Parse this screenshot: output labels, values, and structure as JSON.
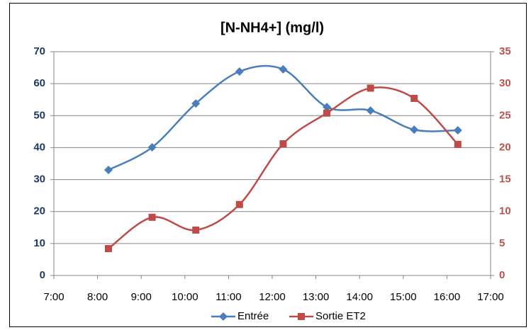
{
  "chart_data": {
    "type": "line",
    "title": "[N-NH4+] (mg/l)",
    "x": [
      8.25,
      9.25,
      10.25,
      11.25,
      12.25,
      13.25,
      14.25,
      15.25,
      16.25
    ],
    "xlim": [
      7,
      17
    ],
    "xticks": [
      {
        "value": 7,
        "label": "7:00"
      },
      {
        "value": 8,
        "label": "8:00"
      },
      {
        "value": 9,
        "label": "9:00"
      },
      {
        "value": 10,
        "label": "10:00"
      },
      {
        "value": 11,
        "label": "11:00"
      },
      {
        "value": 12,
        "label": "12:00"
      },
      {
        "value": 13,
        "label": "13:00"
      },
      {
        "value": 14,
        "label": "14:00"
      },
      {
        "value": 15,
        "label": "15:00"
      },
      {
        "value": 16,
        "label": "16:00"
      },
      {
        "value": 17,
        "label": "17:00"
      }
    ],
    "ylim": [
      0,
      70
    ],
    "yticks": [
      0,
      10,
      20,
      30,
      40,
      50,
      60,
      70
    ],
    "y2lim": [
      0,
      35
    ],
    "y2ticks": [
      0,
      5,
      10,
      15,
      20,
      25,
      30,
      35
    ],
    "grid": true,
    "smooth": true,
    "legend": "bottom",
    "series": [
      {
        "name": "Entrée",
        "color": "#4a7ebb",
        "marker": "diamond",
        "values": [
          33.0,
          40.1,
          53.8,
          63.8,
          64.5,
          52.7,
          51.6,
          45.6,
          45.4
        ]
      },
      {
        "name": "Sortie ET2",
        "color": "#be4b48",
        "marker": "square",
        "axis": "y2",
        "values": [
          4.2,
          9.1,
          7.1,
          11.1,
          20.6,
          25.4,
          29.3,
          27.7,
          20.5
        ]
      }
    ]
  }
}
